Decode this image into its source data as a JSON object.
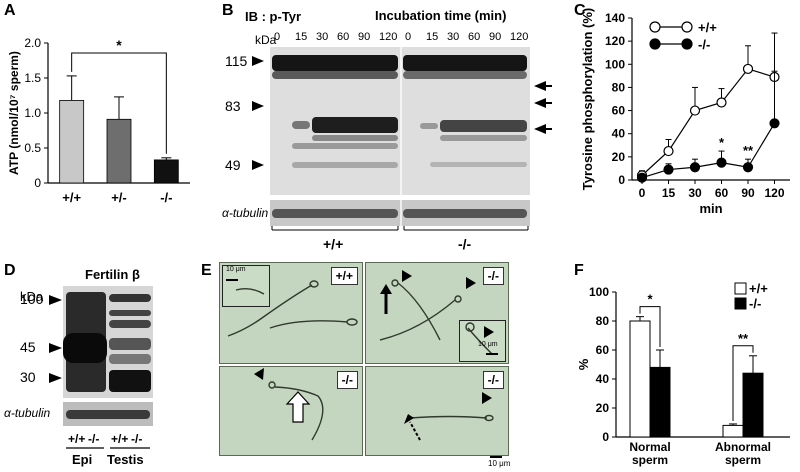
{
  "panels": {
    "A": {
      "letter": "A",
      "chart_data": {
        "type": "bar",
        "categories": [
          "+/+",
          "+/-",
          "-/-"
        ],
        "values": [
          1.18,
          0.91,
          0.33
        ],
        "errors": [
          0.35,
          0.32,
          0.03
        ],
        "colors": [
          "#c8c8c8",
          "#6e6e6e",
          "#111111"
        ],
        "ylabel": "ATP (nmol/10⁷ sperm)",
        "ylim": [
          0,
          2.0
        ],
        "yticks": [
          "0",
          "0.5",
          "1.0",
          "1.5",
          "2.0"
        ],
        "significance": "*"
      }
    },
    "B": {
      "letter": "B",
      "ib_label": "IB : p-Tyr",
      "time_title": "Incubation time (min)",
      "kda": "kDa",
      "times": [
        "0",
        "15",
        "30",
        "60",
        "90",
        "120",
        "0",
        "15",
        "30",
        "60",
        "90",
        "120"
      ],
      "markers": [
        "115",
        "83",
        "49"
      ],
      "tubulin": "α-tubulin",
      "groups": [
        "+/+",
        "-/-"
      ]
    },
    "C": {
      "letter": "C",
      "chart_data": {
        "type": "line",
        "x": [
          0,
          15,
          30,
          60,
          90,
          120
        ],
        "xticks": [
          "0",
          "15",
          "30",
          "60",
          "90",
          "120"
        ],
        "xlabel": "min",
        "ylabel": "Tyrosine phosphorylation (%)",
        "ylim": [
          0,
          140
        ],
        "yticks": [
          "0",
          "20",
          "40",
          "60",
          "80",
          "100",
          "120",
          "140"
        ],
        "series": [
          {
            "name": "+/+",
            "values": [
              4,
              25,
              60,
              67,
              96,
              89
            ],
            "errors": [
              4,
              10,
              20,
              12,
              20,
              38
            ],
            "fill": "#ffffff"
          },
          {
            "name": "-/-",
            "values": [
              2,
              9,
              11,
              15,
              11,
              49
            ],
            "errors": [
              2,
              5,
              7,
              10,
              7,
              45
            ],
            "fill": "#000000"
          }
        ],
        "annotations": [
          {
            "x": 60,
            "text": "*"
          },
          {
            "x": 90,
            "text": "**"
          }
        ]
      }
    },
    "D": {
      "letter": "D",
      "title": "Fertilin β",
      "kda": "kDa",
      "markers": [
        "100",
        "45",
        "30"
      ],
      "tubulin": "α-tubulin",
      "lanes": [
        "+/+",
        "-/-",
        "+/+",
        "-/-"
      ],
      "tissues": [
        "Epi",
        "Testis"
      ]
    },
    "E": {
      "letter": "E",
      "labels": [
        "+/+",
        "-/-",
        "-/-",
        "-/-"
      ],
      "scale_inset": "10 μm",
      "scale_main": "10 μm"
    },
    "F": {
      "letter": "F",
      "chart_data": {
        "type": "bar",
        "categories": [
          "Normal sperm",
          "Abnormal sperm"
        ],
        "category_lines": [
          [
            "Normal",
            "sperm"
          ],
          [
            "Abnormal",
            "sperm"
          ]
        ],
        "series": [
          {
            "name": "+/+",
            "values": [
              80,
              8
            ],
            "errors": [
              3,
              1
            ],
            "fill": "#ffffff"
          },
          {
            "name": "-/-",
            "values": [
              48,
              44
            ],
            "errors": [
              12,
              12
            ],
            "fill": "#000000"
          }
        ],
        "ylabel": "%",
        "ylim": [
          0,
          100
        ],
        "yticks": [
          "0",
          "20",
          "40",
          "60",
          "80",
          "100"
        ],
        "significance": [
          "*",
          "**"
        ]
      }
    }
  }
}
